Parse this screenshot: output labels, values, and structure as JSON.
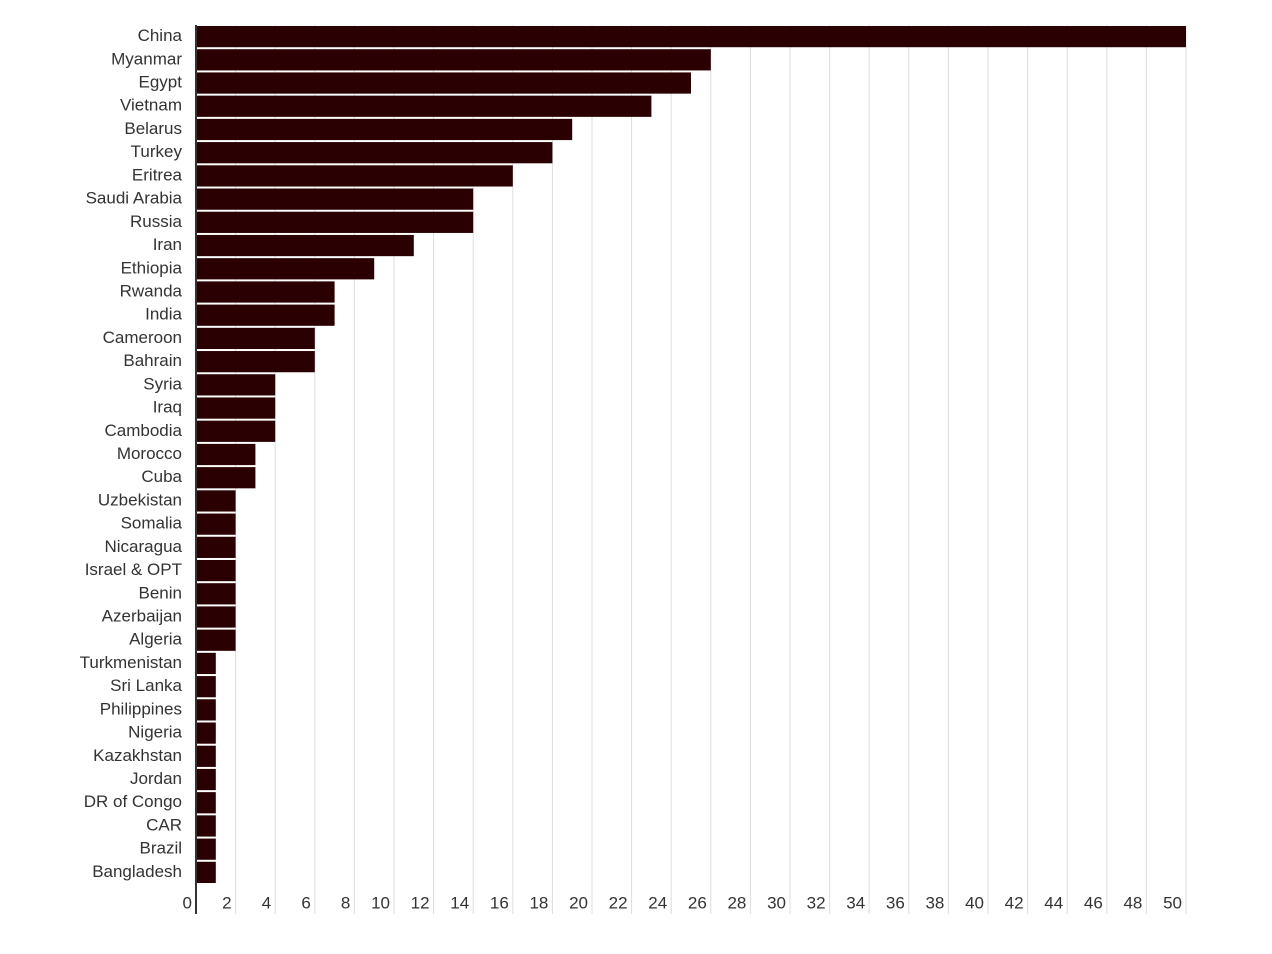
{
  "chart_data": {
    "type": "hbar",
    "categories": [
      "China",
      "Myanmar",
      "Egypt",
      "Vietnam",
      "Belarus",
      "Turkey",
      "Eritrea",
      "Saudi Arabia",
      "Russia",
      "Iran",
      "Ethiopia",
      "Rwanda",
      "India",
      "Cameroon",
      "Bahrain",
      "Syria",
      "Iraq",
      "Cambodia",
      "Morocco",
      "Cuba",
      "Uzbekistan",
      "Somalia",
      "Nicaragua",
      "Israel & OPT",
      "Benin",
      "Azerbaijan",
      "Algeria",
      "Turkmenistan",
      "Sri Lanka",
      "Philippines",
      "Nigeria",
      "Kazakhstan",
      "Jordan",
      "DR of Congo",
      "CAR",
      "Brazil",
      "Bangladesh"
    ],
    "values": [
      50,
      26,
      25,
      23,
      19,
      18,
      16,
      14,
      14,
      11,
      9,
      7,
      7,
      6,
      6,
      4,
      4,
      4,
      3,
      3,
      2,
      2,
      2,
      2,
      2,
      2,
      2,
      1,
      1,
      1,
      1,
      1,
      1,
      1,
      1,
      1,
      1
    ],
    "color": "#2a0003",
    "xlim": [
      0,
      50
    ],
    "xticks": [
      0,
      2,
      4,
      6,
      8,
      10,
      12,
      14,
      16,
      18,
      20,
      22,
      24,
      26,
      28,
      30,
      32,
      34,
      36,
      38,
      40,
      42,
      44,
      46,
      48,
      50
    ],
    "grid": true
  }
}
